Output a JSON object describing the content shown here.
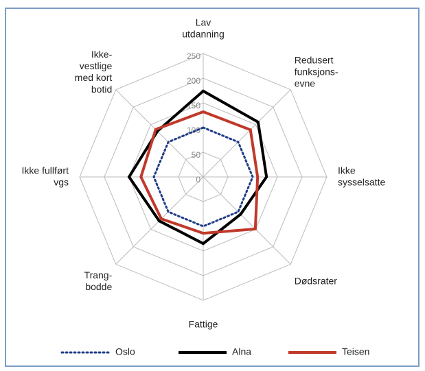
{
  "chart_data": {
    "type": "radar",
    "categories": [
      "Lav\nutdanning",
      "Redusert\nfunksjons-\nevne",
      "Ikke\nsysselsatte",
      "Dødsrater",
      "Fattige",
      "Trang-\nbodde",
      "Ikke fullført\nvgs",
      "Ikke-\nvestlige\nmed kort\nbotid"
    ],
    "series": [
      {
        "name": "Oslo",
        "color": "#1f3c88",
        "dash": "dotted",
        "values": [
          100,
          100,
          100,
          100,
          100,
          100,
          100,
          100
        ]
      },
      {
        "name": "Alna",
        "color": "#000000",
        "dash": "solid",
        "values": [
          174,
          157,
          128,
          107,
          135,
          126,
          150,
          131
        ]
      },
      {
        "name": "Teisen",
        "color": "#c0392b",
        "dash": "solid",
        "values": [
          132,
          135,
          110,
          149,
          114,
          120,
          126,
          136
        ]
      }
    ],
    "rlim": [
      0,
      250
    ],
    "rticks": [
      0,
      50,
      100,
      150,
      200,
      250
    ],
    "grid": true,
    "legend": "bottom"
  }
}
